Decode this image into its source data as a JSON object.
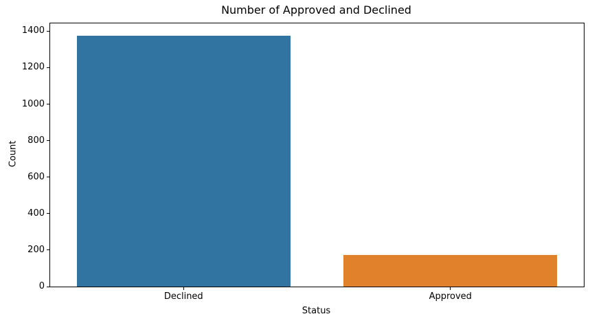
{
  "chart_data": {
    "type": "bar",
    "title": "Number of Approved and Declined",
    "xlabel": "Status",
    "ylabel": "Count",
    "categories": [
      "Declined",
      "Approved"
    ],
    "values": [
      1374,
      174
    ],
    "bar_colors": [
      "#3274a1",
      "#e1812c"
    ],
    "ylim": [
      0,
      1443
    ],
    "yticks": [
      0,
      200,
      400,
      600,
      800,
      1000,
      1200,
      1400
    ],
    "grid": false,
    "legend_position": "none",
    "bar_width_fraction": 0.8,
    "background_color": "#ffffff",
    "axis_color": "#000000"
  }
}
